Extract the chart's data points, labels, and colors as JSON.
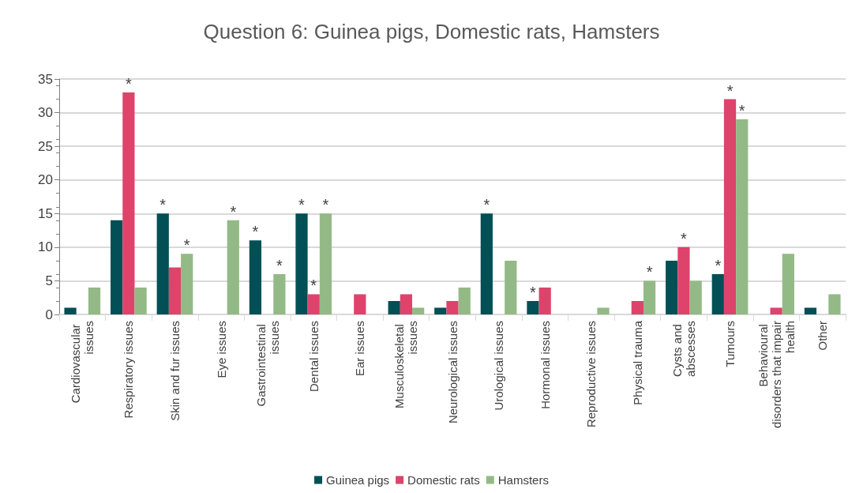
{
  "chart_data": {
    "type": "bar",
    "title": "Question 6: Guinea pigs, Domestic rats, Hamsters",
    "categories": [
      "Cardiovascular issues",
      "Respiratory issues",
      "Skin and fur issues",
      "Eye issues",
      "Gastrointestinal issues",
      "Dental issues",
      "Ear issues",
      "Musculoskeletal issues",
      "Neurological issues",
      "Urological issues",
      "Hormonal issues",
      "Reproductive issues",
      "Physical trauma",
      "Cysts and abscesses",
      "Tumours",
      "Behavioural disorders that impair health",
      "Other"
    ],
    "series": [
      {
        "name": "Guinea pigs",
        "color": "#024f55",
        "values": [
          1,
          14,
          15,
          0,
          11,
          15,
          0,
          2,
          1,
          15,
          2,
          0,
          0,
          8,
          6,
          0,
          1
        ],
        "value_labels": [
          null,
          null,
          "*",
          null,
          "*",
          "*",
          null,
          null,
          null,
          "*",
          "*",
          null,
          null,
          null,
          "*",
          null,
          null
        ]
      },
      {
        "name": "Domestic rats",
        "color": "#de436b",
        "values": [
          0,
          33,
          7,
          0,
          0,
          3,
          3,
          3,
          2,
          0,
          4,
          0,
          2,
          10,
          32,
          1,
          0
        ],
        "value_labels": [
          null,
          "*",
          null,
          null,
          null,
          "*",
          null,
          null,
          null,
          null,
          null,
          null,
          null,
          "*",
          "*",
          null,
          null
        ]
      },
      {
        "name": "Hamsters",
        "color": "#93ba86",
        "values": [
          4,
          4,
          9,
          14,
          6,
          15,
          0,
          1,
          4,
          8,
          0,
          1,
          5,
          5,
          29,
          9,
          3
        ],
        "value_labels": [
          null,
          null,
          "*",
          "*",
          "*",
          "*",
          null,
          null,
          null,
          null,
          null,
          null,
          "*",
          null,
          "*",
          null,
          null
        ]
      }
    ],
    "ylim": [
      0,
      35
    ],
    "yticks": [
      0,
      5,
      10,
      15,
      20,
      25,
      30,
      35
    ],
    "grid": "y",
    "legend": "bottom"
  }
}
